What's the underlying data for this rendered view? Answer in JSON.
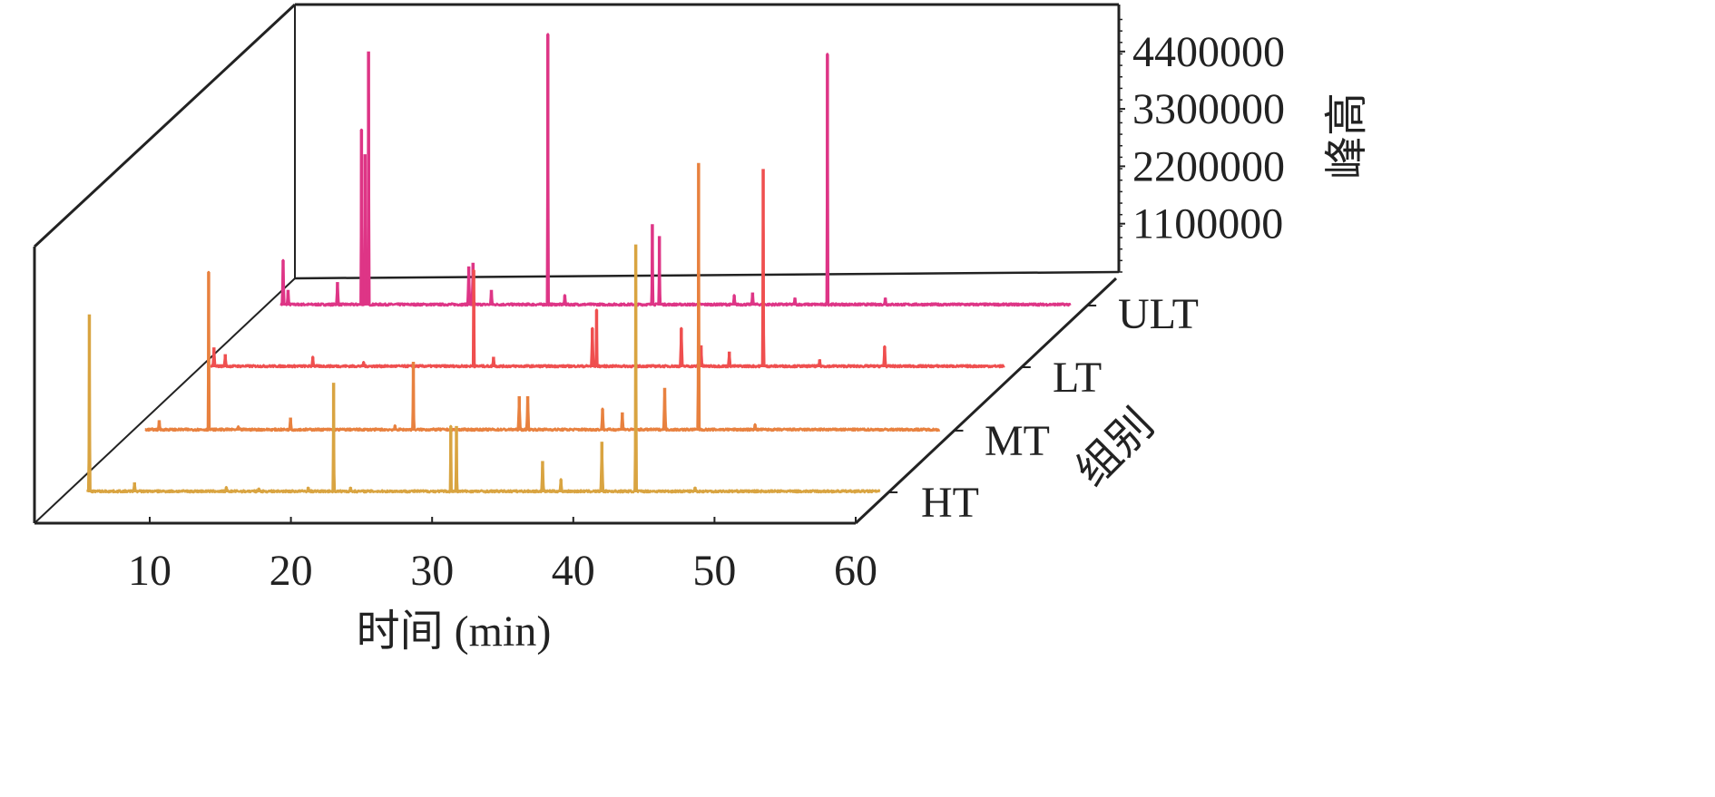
{
  "chart_data": {
    "type": "line",
    "subtype": "3d-waterfall",
    "title": "",
    "xlabel": "时间 (min)",
    "ylabel": "组别",
    "zlabel": "峰高",
    "xlim": [
      2,
      60
    ],
    "zlim": [
      0,
      5200000
    ],
    "x_ticks": [
      10,
      20,
      30,
      40,
      50,
      60
    ],
    "z_ticks": [
      1100000,
      2200000,
      3300000,
      4400000
    ],
    "z_tick_labels": [
      "1100000",
      "2200000",
      "3300000",
      "4400000"
    ],
    "grid": false,
    "series": [
      {
        "name": "HT",
        "color": "#d9a441",
        "start": 3.2,
        "end": 59.4,
        "peaks": [
          [
            3.4,
            3410000
          ],
          [
            6.6,
            190000
          ],
          [
            13.1,
            100000
          ],
          [
            15.4,
            80000
          ],
          [
            18.9,
            100000
          ],
          [
            20.7,
            2100000
          ],
          [
            21.9,
            100000
          ],
          [
            29.0,
            1270000
          ],
          [
            29.4,
            1270000
          ],
          [
            35.5,
            600000
          ],
          [
            36.8,
            250000
          ],
          [
            39.7,
            970000
          ],
          [
            42.1,
            4750000
          ],
          [
            46.3,
            100000
          ]
        ]
      },
      {
        "name": "MT",
        "color": "#e8813f",
        "start": 2.7,
        "end": 59.0,
        "peaks": [
          [
            3.7,
            200000
          ],
          [
            7.2,
            3040000
          ],
          [
            9.3,
            80000
          ],
          [
            13.0,
            250000
          ],
          [
            20.4,
            100000
          ],
          [
            21.7,
            1320000
          ],
          [
            29.2,
            660000
          ],
          [
            29.8,
            660000
          ],
          [
            35.1,
            420000
          ],
          [
            36.5,
            350000
          ],
          [
            39.5,
            820000
          ],
          [
            41.9,
            5130000
          ],
          [
            45.9,
            120000
          ]
        ]
      },
      {
        "name": "LT",
        "color": "#ef4f4f",
        "start": 2.6,
        "end": 58.8,
        "peaks": [
          [
            2.8,
            380000
          ],
          [
            3.6,
            250000
          ],
          [
            9.8,
            200000
          ],
          [
            13.4,
            100000
          ],
          [
            21.2,
            1860000
          ],
          [
            22.6,
            200000
          ],
          [
            29.6,
            750000
          ],
          [
            29.9,
            1100000
          ],
          [
            35.9,
            750000
          ],
          [
            37.3,
            420000
          ],
          [
            39.3,
            300000
          ],
          [
            41.7,
            3800000
          ],
          [
            45.7,
            150000
          ],
          [
            50.3,
            400000
          ]
        ]
      },
      {
        "name": "ULT",
        "color": "#de3586",
        "start": 2.9,
        "end": 58.8,
        "peaks": [
          [
            3.05,
            870000
          ],
          [
            3.4,
            300000
          ],
          [
            6.9,
            450000
          ],
          [
            8.6,
            3370000
          ],
          [
            8.85,
            2900000
          ],
          [
            9.1,
            4870000
          ],
          [
            16.2,
            750000
          ],
          [
            16.5,
            820000
          ],
          [
            17.8,
            300000
          ],
          [
            21.8,
            5200000
          ],
          [
            23.0,
            200000
          ],
          [
            29.2,
            1560000
          ],
          [
            29.7,
            1330000
          ],
          [
            35.0,
            200000
          ],
          [
            36.3,
            250000
          ],
          [
            39.3,
            150000
          ],
          [
            41.6,
            4820000
          ],
          [
            45.7,
            150000
          ]
        ]
      }
    ]
  }
}
